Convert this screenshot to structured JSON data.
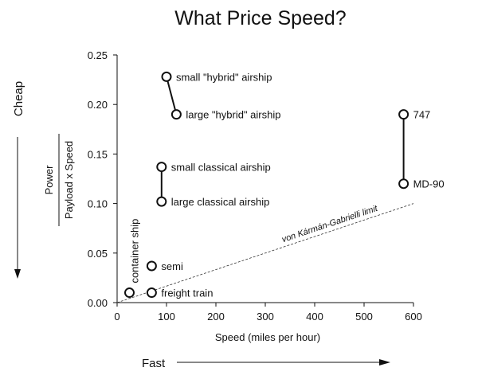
{
  "chart_data": {
    "type": "scatter",
    "title": "What Price Speed?",
    "xlabel": "Speed (miles per hour)",
    "ylabel_numerator": "Power",
    "ylabel_denominator": "Payload x Speed",
    "xlim": [
      0,
      600
    ],
    "ylim": [
      0,
      0.25
    ],
    "xticks": [
      "0",
      "100",
      "200",
      "300",
      "400",
      "500",
      "600"
    ],
    "yticks": [
      "0.00",
      "0.05",
      "0.10",
      "0.15",
      "0.20",
      "0.25"
    ],
    "points": [
      {
        "label": "small \"hybrid\" airship",
        "x": 100,
        "y": 0.228
      },
      {
        "label": "large \"hybrid\" airship",
        "x": 120,
        "y": 0.19
      },
      {
        "label": "small classical airship",
        "x": 90,
        "y": 0.137
      },
      {
        "label": "large classical airship",
        "x": 90,
        "y": 0.102
      },
      {
        "label": "747",
        "x": 580,
        "y": 0.19
      },
      {
        "label": "MD-90",
        "x": 580,
        "y": 0.12
      },
      {
        "label": "semi",
        "x": 70,
        "y": 0.037
      },
      {
        "label": "freight train",
        "x": 70,
        "y": 0.01
      },
      {
        "label": "container ship",
        "x": 25,
        "y": 0.01
      }
    ],
    "connectors": [
      [
        0,
        1
      ],
      [
        2,
        3
      ],
      [
        4,
        5
      ]
    ],
    "limit_line": {
      "label": "von Kármán-Gabrielli limit",
      "x": [
        0,
        600
      ],
      "y": [
        0,
        0.1
      ]
    },
    "side_labels": {
      "y_direction": "Cheap",
      "x_direction": "Fast"
    }
  }
}
